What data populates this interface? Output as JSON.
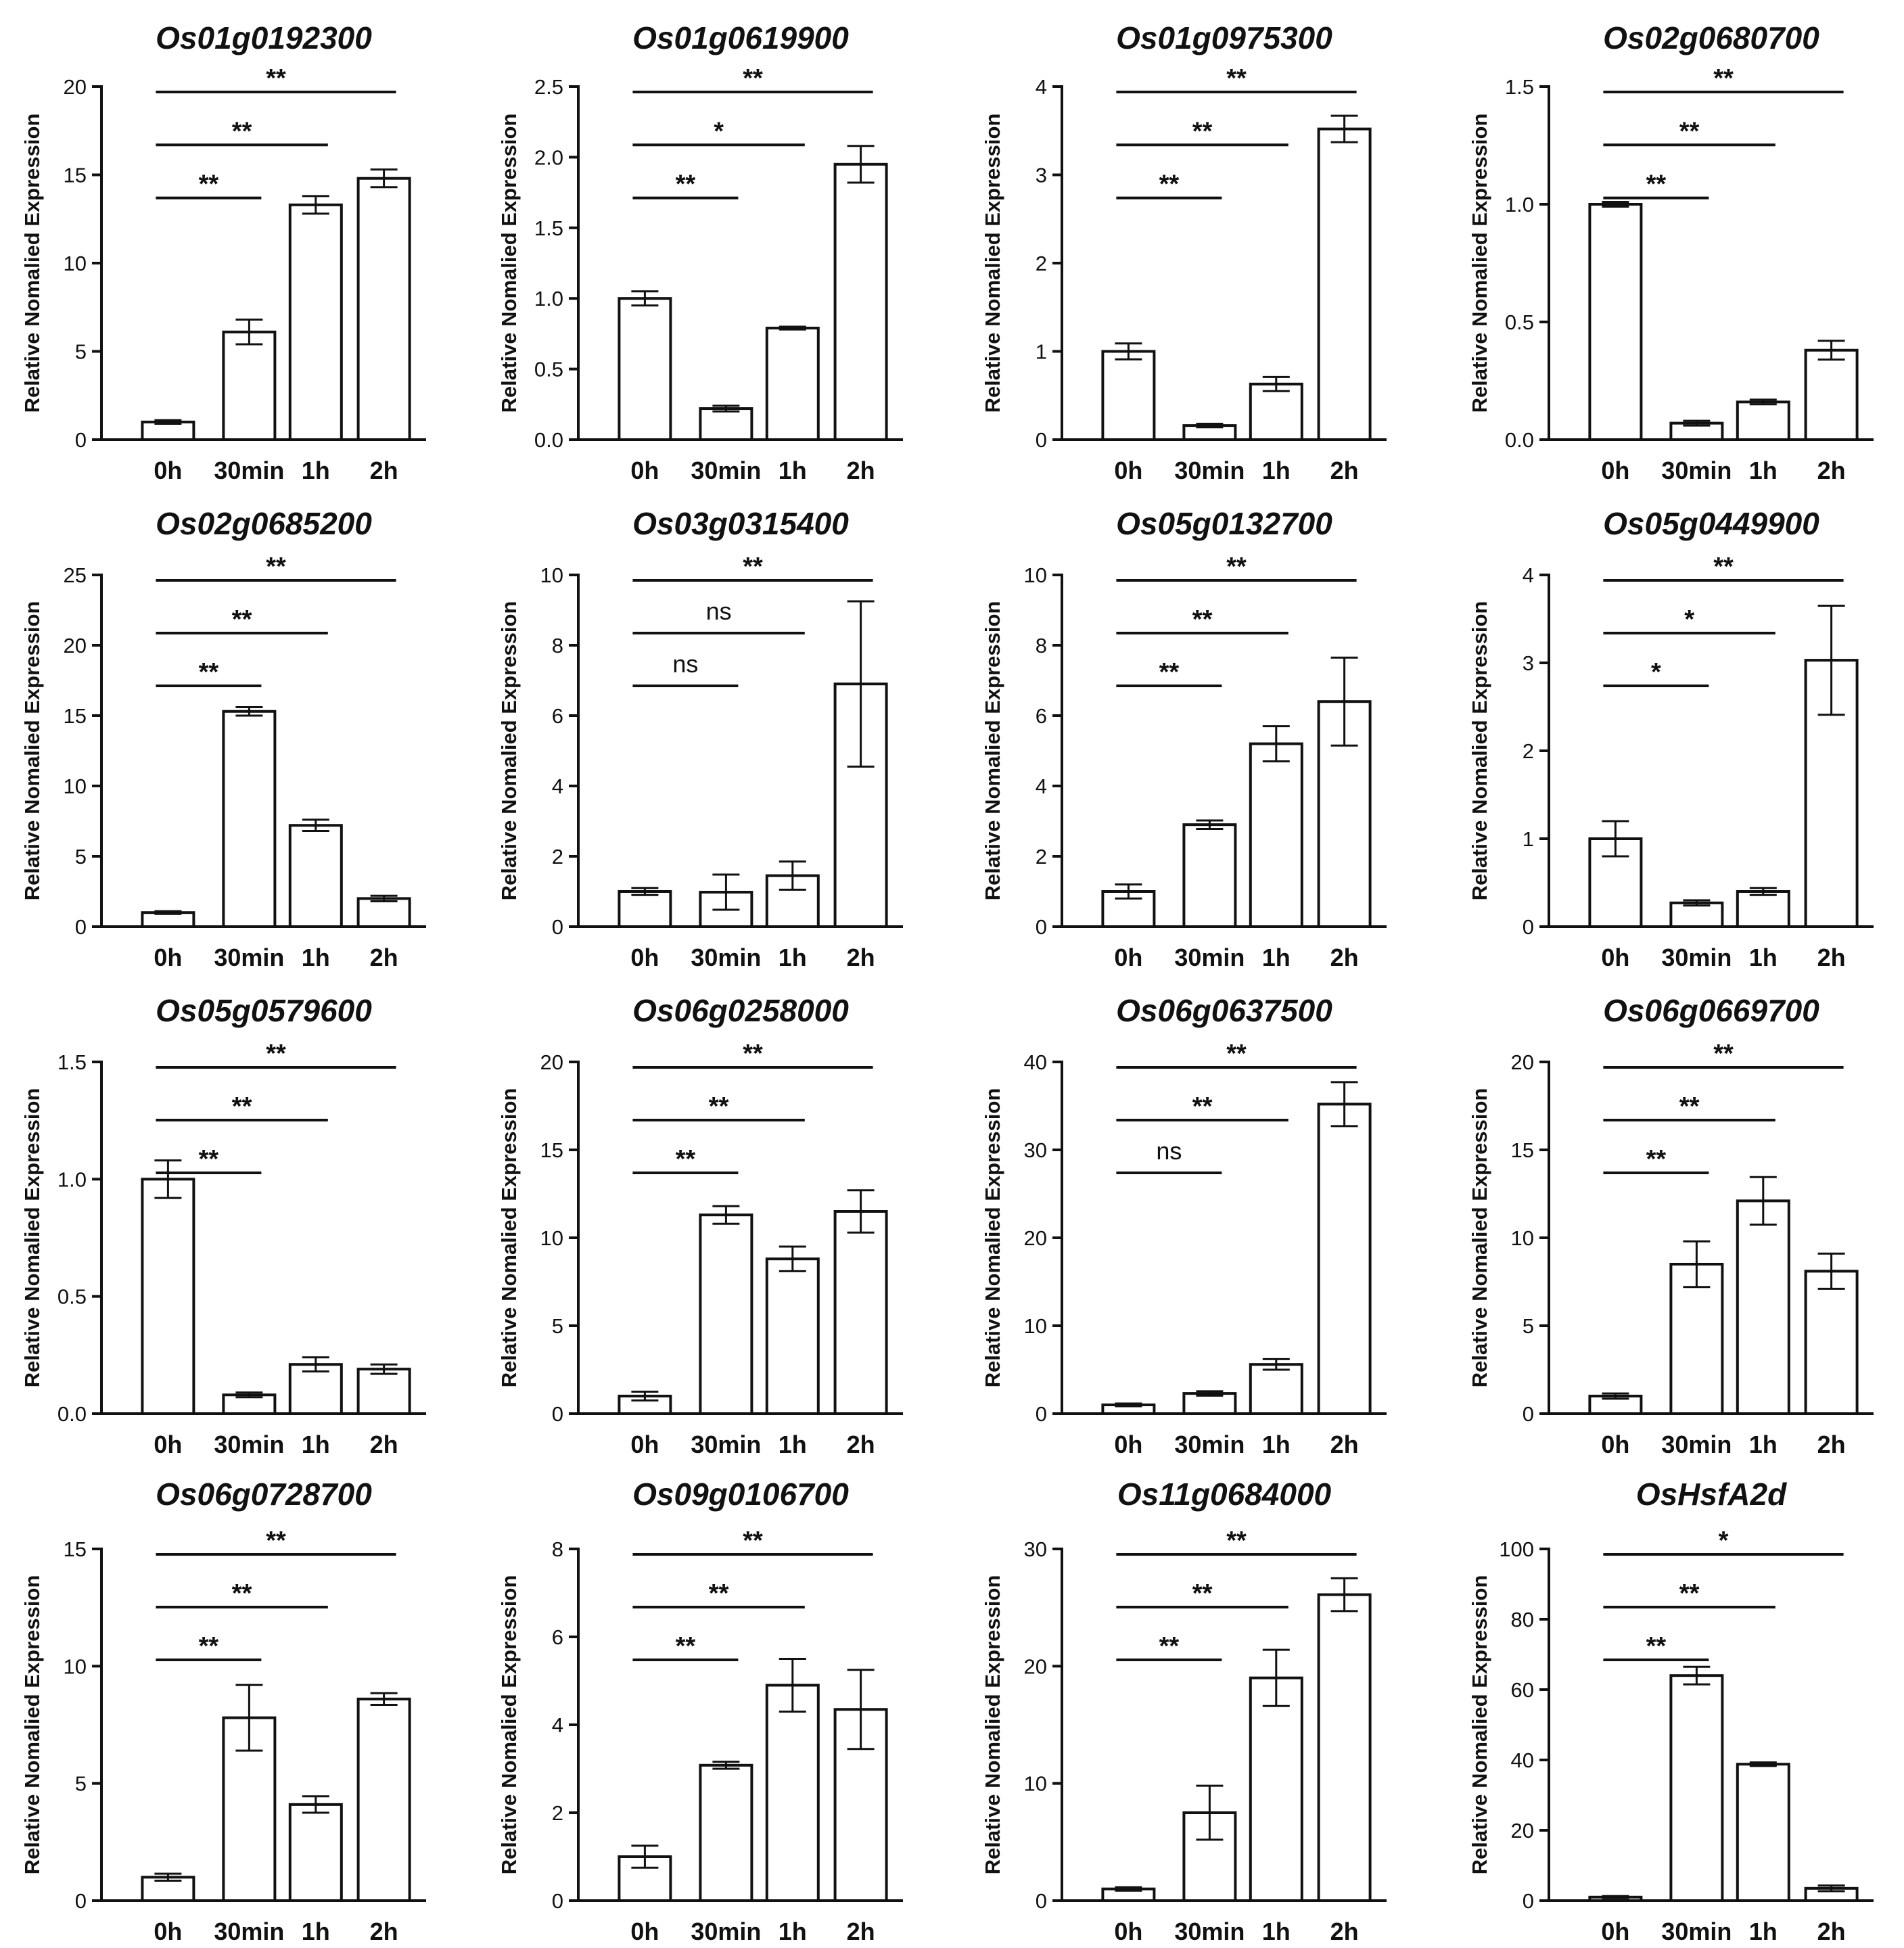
{
  "figure": {
    "ylabel": "Relative Nomalied Expression",
    "categories": [
      "0h",
      "30min",
      "1h",
      "2h"
    ]
  },
  "chart_data": [
    {
      "type": "bar",
      "title": "Os01g0192300",
      "categories": [
        "0h",
        "30min",
        "1h",
        "2h"
      ],
      "values": [
        1.0,
        6.1,
        13.3,
        14.8
      ],
      "errors": [
        0.1,
        0.7,
        0.5,
        0.5
      ],
      "ylim": [
        0,
        20
      ],
      "yticks": [
        0,
        5,
        10,
        15,
        20
      ],
      "ytick_labels": [
        "0",
        "5",
        "10",
        "15",
        "20"
      ],
      "ylabel": "Relative Nomalied Expression",
      "significance": [
        {
          "from": "0h",
          "to": "30min",
          "label": "**"
        },
        {
          "from": "0h",
          "to": "1h",
          "label": "**"
        },
        {
          "from": "0h",
          "to": "2h",
          "label": "**"
        }
      ]
    },
    {
      "type": "bar",
      "title": "Os01g0619900",
      "categories": [
        "0h",
        "30min",
        "1h",
        "2h"
      ],
      "values": [
        1.0,
        0.22,
        0.79,
        1.95
      ],
      "errors": [
        0.05,
        0.02,
        0.01,
        0.13
      ],
      "ylim": [
        0,
        2.5
      ],
      "yticks": [
        0,
        0.5,
        1.0,
        1.5,
        2.0,
        2.5
      ],
      "ytick_labels": [
        "0.0",
        "0.5",
        "1.0",
        "1.5",
        "2.0",
        "2.5"
      ],
      "ylabel": "Relative Nomalied Expression",
      "significance": [
        {
          "from": "0h",
          "to": "30min",
          "label": "**"
        },
        {
          "from": "0h",
          "to": "1h",
          "label": "*"
        },
        {
          "from": "0h",
          "to": "2h",
          "label": "**"
        }
      ]
    },
    {
      "type": "bar",
      "title": "Os01g0975300",
      "categories": [
        "0h",
        "30min",
        "1h",
        "2h"
      ],
      "values": [
        1.0,
        0.16,
        0.63,
        3.52
      ],
      "errors": [
        0.09,
        0.02,
        0.08,
        0.15
      ],
      "ylim": [
        0,
        4
      ],
      "yticks": [
        0,
        1,
        2,
        3,
        4
      ],
      "ytick_labels": [
        "0",
        "1",
        "2",
        "3",
        "4"
      ],
      "ylabel": "Relative Nomalied Expression",
      "significance": [
        {
          "from": "0h",
          "to": "30min",
          "label": "**"
        },
        {
          "from": "0h",
          "to": "1h",
          "label": "**"
        },
        {
          "from": "0h",
          "to": "2h",
          "label": "**"
        }
      ]
    },
    {
      "type": "bar",
      "title": "Os02g0680700",
      "categories": [
        "0h",
        "30min",
        "1h",
        "2h"
      ],
      "values": [
        1.0,
        0.07,
        0.16,
        0.38
      ],
      "errors": [
        0.01,
        0.01,
        0.01,
        0.04
      ],
      "ylim": [
        0,
        1.5
      ],
      "yticks": [
        0,
        0.5,
        1.0,
        1.5
      ],
      "ytick_labels": [
        "0.0",
        "0.5",
        "1.0",
        "1.5"
      ],
      "ylabel": "Relative Nomalied Expression",
      "significance": [
        {
          "from": "0h",
          "to": "30min",
          "label": "**"
        },
        {
          "from": "0h",
          "to": "1h",
          "label": "**"
        },
        {
          "from": "0h",
          "to": "2h",
          "label": "**"
        }
      ]
    },
    {
      "type": "bar",
      "title": "Os02g0685200",
      "categories": [
        "0h",
        "30min",
        "1h",
        "2h"
      ],
      "values": [
        1.0,
        15.3,
        7.2,
        2.0
      ],
      "errors": [
        0.1,
        0.3,
        0.4,
        0.2
      ],
      "ylim": [
        0,
        25
      ],
      "yticks": [
        0,
        5,
        10,
        15,
        20,
        25
      ],
      "ytick_labels": [
        "0",
        "5",
        "10",
        "15",
        "20",
        "25"
      ],
      "ylabel": "Relative Nomalied Expression",
      "significance": [
        {
          "from": "0h",
          "to": "30min",
          "label": "**"
        },
        {
          "from": "0h",
          "to": "1h",
          "label": "**"
        },
        {
          "from": "0h",
          "to": "2h",
          "label": "**"
        }
      ]
    },
    {
      "type": "bar",
      "title": "Os03g0315400",
      "categories": [
        "0h",
        "30min",
        "1h",
        "2h"
      ],
      "values": [
        1.0,
        0.98,
        1.45,
        6.9
      ],
      "errors": [
        0.1,
        0.5,
        0.4,
        2.35
      ],
      "ylim": [
        0,
        10
      ],
      "yticks": [
        0,
        2,
        4,
        6,
        8,
        10
      ],
      "ytick_labels": [
        "0",
        "2",
        "4",
        "6",
        "8",
        "10"
      ],
      "ylabel": "Relative Nomalied Expression",
      "significance": [
        {
          "from": "0h",
          "to": "30min",
          "label": "ns"
        },
        {
          "from": "0h",
          "to": "1h",
          "label": "ns"
        },
        {
          "from": "0h",
          "to": "2h",
          "label": "**"
        }
      ]
    },
    {
      "type": "bar",
      "title": "Os05g0132700",
      "categories": [
        "0h",
        "30min",
        "1h",
        "2h"
      ],
      "values": [
        1.0,
        2.9,
        5.2,
        6.4
      ],
      "errors": [
        0.2,
        0.12,
        0.5,
        1.25
      ],
      "ylim": [
        0,
        10
      ],
      "yticks": [
        0,
        2,
        4,
        6,
        8,
        10
      ],
      "ytick_labels": [
        "0",
        "2",
        "4",
        "6",
        "8",
        "10"
      ],
      "ylabel": "Relative Nomalied Expression",
      "significance": [
        {
          "from": "0h",
          "to": "30min",
          "label": "**"
        },
        {
          "from": "0h",
          "to": "1h",
          "label": "**"
        },
        {
          "from": "0h",
          "to": "2h",
          "label": "**"
        }
      ]
    },
    {
      "type": "bar",
      "title": "Os05g0449900",
      "categories": [
        "0h",
        "30min",
        "1h",
        "2h"
      ],
      "values": [
        1.0,
        0.27,
        0.4,
        3.03
      ],
      "errors": [
        0.2,
        0.03,
        0.04,
        0.62
      ],
      "ylim": [
        0,
        4
      ],
      "yticks": [
        0,
        1,
        2,
        3,
        4
      ],
      "ytick_labels": [
        "0",
        "1",
        "2",
        "3",
        "4"
      ],
      "ylabel": "Relative Nomalied Expression",
      "significance": [
        {
          "from": "0h",
          "to": "30min",
          "label": "*"
        },
        {
          "from": "0h",
          "to": "1h",
          "label": "*"
        },
        {
          "from": "0h",
          "to": "2h",
          "label": "**"
        }
      ]
    },
    {
      "type": "bar",
      "title": "Os05g0579600",
      "categories": [
        "0h",
        "30min",
        "1h",
        "2h"
      ],
      "values": [
        1.0,
        0.08,
        0.21,
        0.19
      ],
      "errors": [
        0.08,
        0.01,
        0.03,
        0.02
      ],
      "ylim": [
        0,
        1.5
      ],
      "yticks": [
        0,
        0.5,
        1.0,
        1.5
      ],
      "ytick_labels": [
        "0.0",
        "0.5",
        "1.0",
        "1.5"
      ],
      "ylabel": "Relative Nomalied Expression",
      "significance": [
        {
          "from": "0h",
          "to": "30min",
          "label": "**"
        },
        {
          "from": "0h",
          "to": "1h",
          "label": "**"
        },
        {
          "from": "0h",
          "to": "2h",
          "label": "**"
        }
      ]
    },
    {
      "type": "bar",
      "title": "Os06g0258000",
      "categories": [
        "0h",
        "30min",
        "1h",
        "2h"
      ],
      "values": [
        1.0,
        11.3,
        8.8,
        11.5
      ],
      "errors": [
        0.25,
        0.5,
        0.7,
        1.2
      ],
      "ylim": [
        0,
        20
      ],
      "yticks": [
        0,
        5,
        10,
        15,
        20
      ],
      "ytick_labels": [
        "0",
        "5",
        "10",
        "15",
        "20"
      ],
      "ylabel": "Relative Nomalied Expression",
      "significance": [
        {
          "from": "0h",
          "to": "30min",
          "label": "**"
        },
        {
          "from": "0h",
          "to": "1h",
          "label": "**"
        },
        {
          "from": "0h",
          "to": "2h",
          "label": "**"
        }
      ]
    },
    {
      "type": "bar",
      "title": "Os06g0637500",
      "categories": [
        "0h",
        "30min",
        "1h",
        "2h"
      ],
      "values": [
        1.0,
        2.3,
        5.6,
        35.2
      ],
      "errors": [
        0.15,
        0.25,
        0.6,
        2.5
      ],
      "ylim": [
        0,
        40
      ],
      "yticks": [
        0,
        10,
        20,
        30,
        40
      ],
      "ytick_labels": [
        "0",
        "10",
        "20",
        "30",
        "40"
      ],
      "ylabel": "Relative Nomalied Expression",
      "significance": [
        {
          "from": "0h",
          "to": "30min",
          "label": "ns"
        },
        {
          "from": "0h",
          "to": "1h",
          "label": "**"
        },
        {
          "from": "0h",
          "to": "2h",
          "label": "**"
        }
      ]
    },
    {
      "type": "bar",
      "title": "Os06g0669700",
      "categories": [
        "0h",
        "30min",
        "1h",
        "2h"
      ],
      "values": [
        1.0,
        8.5,
        12.1,
        8.1
      ],
      "errors": [
        0.15,
        1.3,
        1.35,
        1.0
      ],
      "ylim": [
        0,
        20
      ],
      "yticks": [
        0,
        5,
        10,
        15,
        20
      ],
      "ytick_labels": [
        "0",
        "5",
        "10",
        "15",
        "20"
      ],
      "ylabel": "Relative Nomalied Expression",
      "significance": [
        {
          "from": "0h",
          "to": "30min",
          "label": "**"
        },
        {
          "from": "0h",
          "to": "1h",
          "label": "**"
        },
        {
          "from": "0h",
          "to": "2h",
          "label": "**"
        }
      ]
    },
    {
      "type": "bar",
      "title": "Os06g0728700",
      "categories": [
        "0h",
        "30min",
        "1h",
        "2h"
      ],
      "values": [
        1.0,
        7.8,
        4.1,
        8.6
      ],
      "errors": [
        0.15,
        1.4,
        0.35,
        0.25
      ],
      "ylim": [
        0,
        15
      ],
      "yticks": [
        0,
        5,
        10,
        15
      ],
      "ytick_labels": [
        "0",
        "5",
        "10",
        "15"
      ],
      "ylabel": "Relative Nomalied Expression",
      "significance": [
        {
          "from": "0h",
          "to": "30min",
          "label": "**"
        },
        {
          "from": "0h",
          "to": "1h",
          "label": "**"
        },
        {
          "from": "0h",
          "to": "2h",
          "label": "**"
        }
      ]
    },
    {
      "type": "bar",
      "title": "Os09g0106700",
      "categories": [
        "0h",
        "30min",
        "1h",
        "2h"
      ],
      "values": [
        1.0,
        3.08,
        4.9,
        4.35
      ],
      "errors": [
        0.25,
        0.08,
        0.6,
        0.9
      ],
      "ylim": [
        0,
        8
      ],
      "yticks": [
        0,
        2,
        4,
        6,
        8
      ],
      "ytick_labels": [
        "0",
        "2",
        "4",
        "6",
        "8"
      ],
      "ylabel": "Relative Nomalied Expression",
      "significance": [
        {
          "from": "0h",
          "to": "30min",
          "label": "**"
        },
        {
          "from": "0h",
          "to": "1h",
          "label": "**"
        },
        {
          "from": "0h",
          "to": "2h",
          "label": "**"
        }
      ]
    },
    {
      "type": "bar",
      "title": "Os11g0684000",
      "categories": [
        "0h",
        "30min",
        "1h",
        "2h"
      ],
      "values": [
        1.0,
        7.5,
        19.0,
        26.1
      ],
      "errors": [
        0.15,
        2.3,
        2.4,
        1.4
      ],
      "ylim": [
        0,
        30
      ],
      "yticks": [
        0,
        10,
        20,
        30
      ],
      "ytick_labels": [
        "0",
        "10",
        "20",
        "30"
      ],
      "ylabel": "Relative Nomalied Expression",
      "significance": [
        {
          "from": "0h",
          "to": "30min",
          "label": "**"
        },
        {
          "from": "0h",
          "to": "1h",
          "label": "**"
        },
        {
          "from": "0h",
          "to": "2h",
          "label": "**"
        }
      ]
    },
    {
      "type": "bar",
      "title": "OsHsfA2d",
      "categories": [
        "0h",
        "30min",
        "1h",
        "2h"
      ],
      "values": [
        1.0,
        64.0,
        38.8,
        3.5
      ],
      "errors": [
        0.3,
        2.5,
        0.5,
        0.8
      ],
      "ylim": [
        0,
        100
      ],
      "yticks": [
        0,
        20,
        40,
        60,
        80,
        100
      ],
      "ytick_labels": [
        "0",
        "20",
        "40",
        "60",
        "80",
        "100"
      ],
      "ylabel": "Relative Nomalied Expression",
      "significance": [
        {
          "from": "0h",
          "to": "30min",
          "label": "**"
        },
        {
          "from": "0h",
          "to": "1h",
          "label": "**"
        },
        {
          "from": "0h",
          "to": "2h",
          "label": "*"
        }
      ]
    }
  ]
}
